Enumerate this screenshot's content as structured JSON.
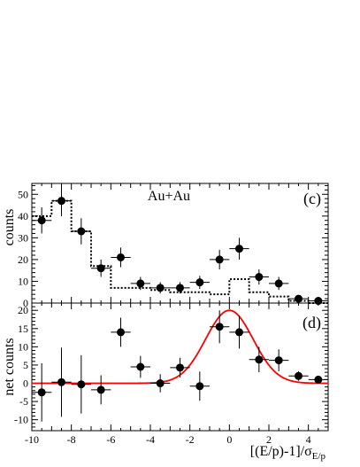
{
  "chart_data": [
    {
      "type": "scatter",
      "panel_label": "(c)",
      "annotation": "Au+Au",
      "ylabel": "counts",
      "xlim": [
        -10,
        5
      ],
      "ylim": [
        0,
        55
      ],
      "yticks": [
        0,
        10,
        20,
        30,
        40,
        50
      ],
      "series": [
        {
          "style": "points-with-errors",
          "color": "#000000",
          "x": [
            -9.5,
            -8.5,
            -7.5,
            -6.5,
            -5.5,
            -4.5,
            -3.5,
            -2.5,
            -1.5,
            -0.5,
            0.5,
            1.5,
            2.5,
            3.5,
            4.5
          ],
          "y": [
            38,
            47,
            33,
            16,
            21,
            9,
            7,
            7,
            9.5,
            20,
            25,
            12,
            9,
            2,
            1
          ],
          "yerr": [
            6,
            7,
            6,
            4,
            4.5,
            3,
            2.6,
            2.6,
            3,
            4.5,
            5,
            3.5,
            3,
            1.4,
            1
          ]
        },
        {
          "style": "dotted-step",
          "color": "#000000",
          "bin_edges": [
            -10,
            -9,
            -8,
            -7,
            -6,
            -5,
            -4,
            -3,
            -2,
            -1,
            0,
            1,
            2,
            3,
            4,
            5
          ],
          "values": [
            40,
            47,
            33,
            17,
            7,
            7,
            6,
            5,
            5,
            4,
            11,
            5,
            3,
            1,
            0
          ]
        }
      ]
    },
    {
      "type": "scatter",
      "panel_label": "(d)",
      "ylabel": "net counts",
      "xlabel": "[(E/p)-1]/σ",
      "xlabel_subscript": "E/p",
      "xlim": [
        -10,
        5
      ],
      "ylim": [
        -13,
        22
      ],
      "xticks": [
        -10,
        -8,
        -6,
        -4,
        -2,
        0,
        2,
        4
      ],
      "yticks": [
        -10,
        -5,
        0,
        5,
        10,
        15,
        20
      ],
      "series": [
        {
          "style": "points-with-errors",
          "color": "#000000",
          "x": [
            -9.5,
            -8.5,
            -7.5,
            -6.5,
            -5.5,
            -4.5,
            -3.5,
            -2.5,
            -1.5,
            -0.5,
            0.5,
            1.5,
            2.5,
            3.5,
            4.5
          ],
          "y": [
            -2.5,
            0.3,
            -0.3,
            -1.8,
            14,
            4.5,
            0,
            4.3,
            -0.8,
            15.5,
            14,
            6.5,
            6.3,
            2,
            1
          ],
          "yerr": [
            8,
            9.5,
            8,
            4,
            4,
            3,
            2.5,
            2.7,
            4,
            4.5,
            4.5,
            3.5,
            3,
            1.3,
            0.8
          ]
        },
        {
          "style": "gaussian-curve",
          "color": "#ff0000",
          "amplitude": 20,
          "mean": 0,
          "sigma": 1.2
        }
      ]
    }
  ]
}
